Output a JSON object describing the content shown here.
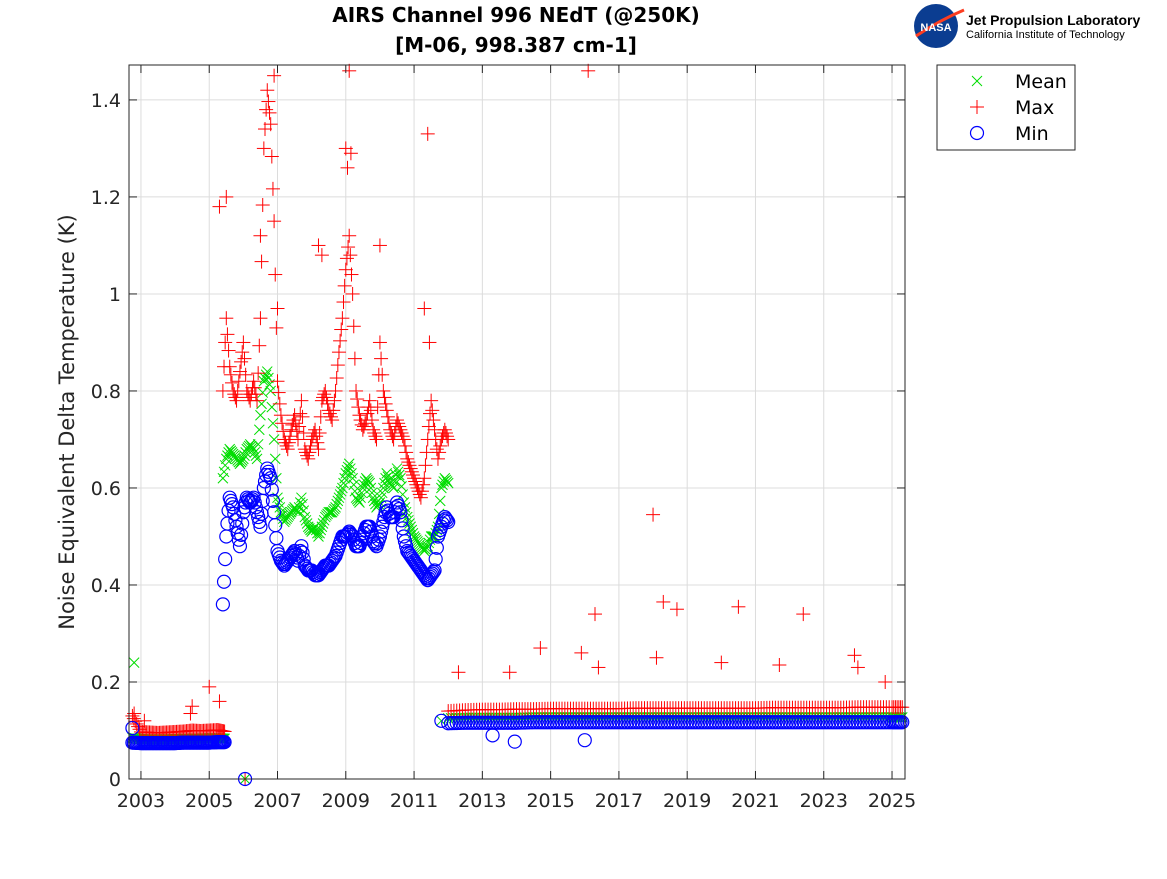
{
  "chart_data": {
    "type": "scatter",
    "title": "AIRS Channel 996 NEdT (@250K)",
    "subtitle": "[M-06, 998.387 cm-1]",
    "xlabel": "",
    "ylabel": "Noise Equivalent Delta Temperature (K)",
    "xlim": [
      2002.65,
      2025.38
    ],
    "ylim": [
      0,
      1.472
    ],
    "xticks": [
      2003,
      2005,
      2007,
      2009,
      2011,
      2013,
      2015,
      2017,
      2019,
      2021,
      2023,
      2025
    ],
    "yticks": [
      0,
      0.2,
      0.4,
      0.6,
      0.8,
      1,
      1.2,
      1.4
    ],
    "ytick_labels": [
      "0",
      "0.2",
      "0.4",
      "0.6",
      "0.8",
      "1",
      "1.2",
      "1.4"
    ],
    "grid": true,
    "legend_placement": "outside-top-right",
    "logo": {
      "org": "Jet Propulsion Laboratory",
      "sub": "California Institute of Technology",
      "badge": "NASA"
    },
    "x_mid": [
      2005.4,
      2005.5,
      2005.6,
      2005.7,
      2005.8,
      2005.9,
      2006.0,
      2006.1,
      2006.2,
      2006.3,
      2006.4,
      2006.5,
      2006.6,
      2006.7,
      2006.8,
      2006.9,
      2007.0,
      2007.1,
      2007.2,
      2007.3,
      2007.4,
      2007.5,
      2007.6,
      2007.7,
      2007.8,
      2007.9,
      2008.0,
      2008.1,
      2008.2,
      2008.3,
      2008.4,
      2008.5,
      2008.6,
      2008.7,
      2008.8,
      2008.9,
      2009.0,
      2009.1,
      2009.2,
      2009.3,
      2009.4,
      2009.5,
      2009.6,
      2009.7,
      2009.8,
      2009.9,
      2010.0,
      2010.1,
      2010.2,
      2010.3,
      2010.4,
      2010.5,
      2010.6,
      2010.7,
      2010.8,
      2010.9,
      2011.0,
      2011.1,
      2011.2,
      2011.3,
      2011.4,
      2011.5,
      2011.6,
      2011.7,
      2011.8,
      2011.9,
      2012.0
    ],
    "x_early": [
      2002.75,
      2003.0,
      2003.25,
      2003.5,
      2003.75,
      2004.0,
      2004.25,
      2004.5,
      2004.75,
      2005.0,
      2005.25,
      2005.45
    ],
    "x_late": [
      2012.0,
      2012.5,
      2013.0,
      2013.5,
      2014.0,
      2014.5,
      2015.0,
      2015.5,
      2016.0,
      2016.5,
      2017.0,
      2017.5,
      2018.0,
      2018.5,
      2019.0,
      2019.5,
      2020.0,
      2020.5,
      2021.0,
      2021.5,
      2022.0,
      2022.5,
      2023.0,
      2023.5,
      2024.0,
      2024.5,
      2025.0,
      2025.3
    ],
    "series": [
      {
        "name": "Mean",
        "marker": "x",
        "color": "#00dd00",
        "mid": [
          0.62,
          0.66,
          0.68,
          0.67,
          0.66,
          0.65,
          0.66,
          0.68,
          0.69,
          0.68,
          0.66,
          0.75,
          0.82,
          0.84,
          0.8,
          0.7,
          0.58,
          0.55,
          0.53,
          0.54,
          0.55,
          0.56,
          0.55,
          0.58,
          0.54,
          0.52,
          0.51,
          0.52,
          0.5,
          0.52,
          0.54,
          0.55,
          0.55,
          0.56,
          0.58,
          0.6,
          0.63,
          0.65,
          0.62,
          0.58,
          0.57,
          0.6,
          0.62,
          0.61,
          0.58,
          0.56,
          0.57,
          0.6,
          0.63,
          0.61,
          0.6,
          0.64,
          0.62,
          0.57,
          0.54,
          0.52,
          0.5,
          0.49,
          0.48,
          0.47,
          0.48,
          0.5,
          0.5,
          0.52,
          0.6,
          0.62,
          0.61
        ],
        "early": [
          0.085,
          0.082,
          0.082,
          0.081,
          0.082,
          0.082,
          0.083,
          0.083,
          0.083,
          0.084,
          0.084,
          0.083
        ],
        "late": [
          0.125,
          0.126,
          0.126,
          0.126,
          0.126,
          0.127,
          0.127,
          0.127,
          0.127,
          0.127,
          0.127,
          0.127,
          0.127,
          0.127,
          0.127,
          0.127,
          0.127,
          0.127,
          0.127,
          0.127,
          0.127,
          0.127,
          0.127,
          0.127,
          0.127,
          0.127,
          0.127,
          0.127
        ],
        "outliers": [
          [
            2002.8,
            0.24
          ],
          [
            2006.05,
            0
          ],
          [
            2011.8,
            0.12
          ]
        ]
      },
      {
        "name": "Max",
        "marker": "+",
        "color": "#ff0000",
        "mid": [
          0.8,
          0.95,
          0.85,
          0.8,
          0.78,
          0.84,
          0.9,
          0.8,
          0.78,
          0.82,
          0.78,
          0.95,
          1.3,
          1.42,
          1.35,
          1.15,
          0.82,
          0.75,
          0.7,
          0.68,
          0.72,
          0.75,
          0.7,
          0.78,
          0.68,
          0.66,
          0.7,
          0.72,
          0.68,
          0.78,
          0.8,
          0.76,
          0.74,
          0.8,
          0.88,
          0.95,
          1.05,
          1.12,
          1.0,
          0.8,
          0.75,
          0.72,
          0.74,
          0.78,
          0.72,
          0.7,
          0.9,
          0.8,
          0.76,
          0.72,
          0.7,
          0.74,
          0.72,
          0.7,
          0.66,
          0.64,
          0.62,
          0.6,
          0.58,
          0.62,
          0.7,
          0.78,
          0.72,
          0.66,
          0.7,
          0.72,
          0.7
        ],
        "early": [
          0.13,
          0.097,
          0.096,
          0.095,
          0.096,
          0.097,
          0.098,
          0.1,
          0.099,
          0.1,
          0.101,
          0.098
        ],
        "late": [
          0.14,
          0.142,
          0.143,
          0.143,
          0.144,
          0.144,
          0.145,
          0.145,
          0.145,
          0.145,
          0.145,
          0.146,
          0.146,
          0.146,
          0.146,
          0.146,
          0.146,
          0.146,
          0.146,
          0.147,
          0.147,
          0.147,
          0.147,
          0.147,
          0.148,
          0.148,
          0.148,
          0.148
        ],
        "outliers": [
          [
            2002.8,
            0.135
          ],
          [
            2003.1,
            0.12
          ],
          [
            2004.45,
            0.135
          ],
          [
            2004.5,
            0.15
          ],
          [
            2005.0,
            0.19
          ],
          [
            2005.3,
            0.16
          ],
          [
            2005.3,
            1.18
          ],
          [
            2005.5,
            1.2
          ],
          [
            2006.5,
            1.12
          ],
          [
            2006.9,
            1.45
          ],
          [
            2007.0,
            0.97
          ],
          [
            2008.2,
            1.1
          ],
          [
            2008.3,
            1.08
          ],
          [
            2009.0,
            1.3
          ],
          [
            2009.05,
            1.26
          ],
          [
            2009.1,
            1.46
          ],
          [
            2009.15,
            1.29
          ],
          [
            2010.0,
            1.1
          ],
          [
            2011.3,
            0.97
          ],
          [
            2011.4,
            1.33
          ],
          [
            2011.45,
            0.9
          ],
          [
            2012.3,
            0.22
          ],
          [
            2013.8,
            0.22
          ],
          [
            2014.7,
            0.27
          ],
          [
            2015.9,
            0.26
          ],
          [
            2016.1,
            1.46
          ],
          [
            2016.3,
            0.34
          ],
          [
            2016.4,
            0.23
          ],
          [
            2018.0,
            0.545
          ],
          [
            2018.1,
            0.25
          ],
          [
            2018.3,
            0.365
          ],
          [
            2018.7,
            0.35
          ],
          [
            2020.0,
            0.24
          ],
          [
            2020.5,
            0.355
          ],
          [
            2021.7,
            0.235
          ],
          [
            2022.4,
            0.34
          ],
          [
            2023.9,
            0.255
          ],
          [
            2024.0,
            0.23
          ],
          [
            2024.8,
            0.2
          ],
          [
            2006.05,
            0
          ]
        ]
      },
      {
        "name": "Min",
        "marker": "o",
        "color": "#0000ff",
        "mid": [
          0.36,
          0.5,
          0.58,
          0.56,
          0.52,
          0.48,
          0.55,
          0.58,
          0.57,
          0.58,
          0.55,
          0.52,
          0.6,
          0.64,
          0.62,
          0.55,
          0.47,
          0.45,
          0.44,
          0.45,
          0.46,
          0.47,
          0.45,
          0.48,
          0.44,
          0.43,
          0.43,
          0.42,
          0.42,
          0.43,
          0.44,
          0.44,
          0.45,
          0.46,
          0.48,
          0.5,
          0.5,
          0.51,
          0.5,
          0.48,
          0.48,
          0.5,
          0.52,
          0.52,
          0.49,
          0.48,
          0.5,
          0.53,
          0.56,
          0.54,
          0.54,
          0.57,
          0.55,
          0.5,
          0.47,
          0.46,
          0.45,
          0.44,
          0.43,
          0.42,
          0.41,
          0.42,
          0.43,
          0.5,
          0.52,
          0.54,
          0.53
        ],
        "early": [
          0.075,
          0.074,
          0.074,
          0.074,
          0.074,
          0.074,
          0.075,
          0.075,
          0.075,
          0.075,
          0.076,
          0.076
        ],
        "late": [
          0.115,
          0.116,
          0.116,
          0.116,
          0.116,
          0.117,
          0.117,
          0.117,
          0.117,
          0.117,
          0.117,
          0.117,
          0.117,
          0.117,
          0.117,
          0.117,
          0.117,
          0.117,
          0.117,
          0.117,
          0.117,
          0.117,
          0.117,
          0.117,
          0.117,
          0.117,
          0.117,
          0.117
        ],
        "outliers": [
          [
            2002.75,
            0.105
          ],
          [
            2006.05,
            0
          ],
          [
            2011.8,
            0.12
          ],
          [
            2013.3,
            0.09
          ],
          [
            2013.95,
            0.077
          ],
          [
            2016.0,
            0.08
          ]
        ]
      }
    ]
  }
}
